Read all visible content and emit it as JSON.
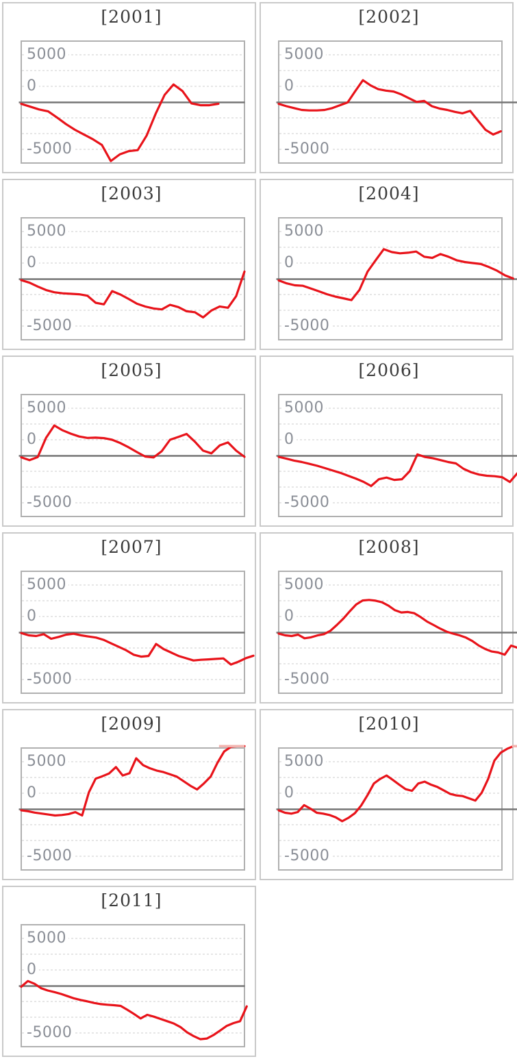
{
  "style": {
    "series_color": "#e8131a",
    "clipped_segment_color": "#f2b4b0",
    "zero_line_color": "#757575",
    "gridline_color": "#d8d8d8",
    "plot_border_color": "#b0b0b0",
    "card_border_color": "#c9c9c9",
    "title_color": "#3a3a3a",
    "tick_label_color": "#8a8e96",
    "background": "#ffffff"
  },
  "axis": {
    "y_tick_labels": [
      "5000",
      "0",
      "-5000"
    ]
  },
  "chart_data": {
    "type": "line",
    "layout": "small multiples, 2 columns, one panel per year",
    "title": "",
    "xlabel": "",
    "ylabel": "",
    "x_axis": {
      "tick_labels_visible": false
    },
    "y_axis": {
      "ticks": [
        5000,
        0,
        -5000
      ],
      "zero_line": true,
      "gridlines": "dashed horizontal",
      "displayed_range": [
        -7700,
        7700
      ]
    },
    "panels": [
      {
        "year": "2001",
        "title": "[2001]",
        "x_span": 0.883,
        "values": [
          -150,
          -450,
          -750,
          -950,
          -1600,
          -2300,
          -2900,
          -3400,
          -3900,
          -4500,
          -6200,
          -5500,
          -5150,
          -5050,
          -3500,
          -1200,
          800,
          1900,
          1200,
          -100,
          -300,
          -300,
          -150
        ]
      },
      {
        "year": "2002",
        "title": "[2002]",
        "x_span": 0.995,
        "values": [
          -150,
          -400,
          -600,
          -800,
          -850,
          -850,
          -800,
          -600,
          -300,
          0,
          1200,
          2350,
          1800,
          1400,
          1250,
          1150,
          850,
          450,
          50,
          150,
          -400,
          -650,
          -800,
          -1000,
          -1150,
          -900,
          -1900,
          -2900,
          -3400,
          -3050
        ]
      },
      {
        "year": "2003",
        "title": "[2003]",
        "x_span": 1.0,
        "values": [
          -110,
          -380,
          -780,
          -1150,
          -1390,
          -1500,
          -1550,
          -1600,
          -1750,
          -2500,
          -2670,
          -1270,
          -1630,
          -2100,
          -2600,
          -2900,
          -3100,
          -3200,
          -2720,
          -2960,
          -3400,
          -3500,
          -4050,
          -3320,
          -2890,
          -3030,
          -1800,
          800
        ]
      },
      {
        "year": "2004",
        "title": "[2004]",
        "x_span": 1.05,
        "values": [
          -140,
          -450,
          -650,
          -700,
          -1000,
          -1300,
          -1600,
          -1850,
          -2030,
          -2220,
          -1130,
          800,
          2000,
          3170,
          2860,
          2730,
          2800,
          2920,
          2370,
          2250,
          2650,
          2370,
          2000,
          1810,
          1700,
          1600,
          1280,
          900,
          400,
          70
        ]
      },
      {
        "year": "2005",
        "title": "[2005]",
        "x_span": 1.0,
        "values": [
          -150,
          -460,
          -120,
          1900,
          3220,
          2700,
          2350,
          2050,
          1900,
          1930,
          1880,
          1700,
          1350,
          900,
          400,
          -70,
          -170,
          500,
          1700,
          2000,
          2320,
          1500,
          550,
          270,
          1100,
          1420,
          550,
          -100
        ]
      },
      {
        "year": "2006",
        "title": "[2006]",
        "x_span": 1.07,
        "values": [
          -110,
          -300,
          -500,
          -650,
          -850,
          -1050,
          -1300,
          -1550,
          -1800,
          -2100,
          -2400,
          -2750,
          -3190,
          -2470,
          -2300,
          -2540,
          -2470,
          -1620,
          150,
          -120,
          -250,
          -450,
          -650,
          -800,
          -1380,
          -1740,
          -1980,
          -2100,
          -2150,
          -2250,
          -2760,
          -1810
        ]
      },
      {
        "year": "2007",
        "title": "[2007]",
        "x_span": 1.04,
        "values": [
          -50,
          -290,
          -360,
          -170,
          -650,
          -460,
          -220,
          -120,
          -290,
          -410,
          -530,
          -770,
          -1140,
          -1500,
          -1860,
          -2340,
          -2540,
          -2470,
          -1200,
          -1740,
          -2100,
          -2470,
          -2710,
          -2950,
          -2880,
          -2830,
          -2780,
          -2730,
          -3380,
          -3080,
          -2700,
          -2450
        ]
      },
      {
        "year": "2008",
        "title": "[2008]",
        "x_span": 1.07,
        "values": [
          -110,
          -290,
          -360,
          -220,
          -600,
          -500,
          -300,
          -170,
          190,
          800,
          1470,
          2250,
          2970,
          3400,
          3460,
          3380,
          3210,
          2850,
          2370,
          2130,
          2180,
          2050,
          1640,
          1160,
          800,
          430,
          100,
          -110,
          -290,
          -530,
          -890,
          -1380,
          -1740,
          -2000,
          -2100,
          -2340,
          -1380,
          -1600
        ]
      },
      {
        "year": "2009",
        "title": "[2009]",
        "x_span": 1.0,
        "clipped_top_segment": {
          "from": 0.886,
          "to": 1.0
        },
        "values": [
          -100,
          -200,
          -350,
          -450,
          -550,
          -650,
          -600,
          -500,
          -300,
          -650,
          1800,
          3250,
          3500,
          3800,
          4470,
          3580,
          3820,
          5400,
          4680,
          4350,
          4100,
          3940,
          3700,
          3460,
          2980,
          2490,
          2100,
          2730,
          3460,
          4910,
          6120,
          6600,
          6680,
          6680
        ]
      },
      {
        "year": "2010",
        "title": "[2010]",
        "x_span": 1.08,
        "clipped_top_segment": {
          "from": 1.045,
          "to": 1.08
        },
        "values": [
          -110,
          -360,
          -460,
          -290,
          440,
          70,
          -360,
          -460,
          -600,
          -850,
          -1260,
          -900,
          -410,
          400,
          1500,
          2730,
          3220,
          3580,
          3100,
          2610,
          2130,
          1960,
          2730,
          2930,
          2610,
          2370,
          2010,
          1640,
          1470,
          1400,
          1160,
          920,
          1760,
          3200,
          5150,
          6000,
          6400,
          6680,
          6680
        ]
      },
      {
        "year": "2011",
        "title": "[2011]",
        "x_span": 1.01,
        "values": [
          -70,
          530,
          240,
          -230,
          -470,
          -640,
          -830,
          -1070,
          -1310,
          -1480,
          -1620,
          -1790,
          -1910,
          -1980,
          -2030,
          -2100,
          -2510,
          -2950,
          -3430,
          -3040,
          -3240,
          -3480,
          -3720,
          -3960,
          -4330,
          -4890,
          -5300,
          -5620,
          -5550,
          -5180,
          -4700,
          -4210,
          -3920,
          -3720,
          -2150
        ]
      }
    ]
  }
}
